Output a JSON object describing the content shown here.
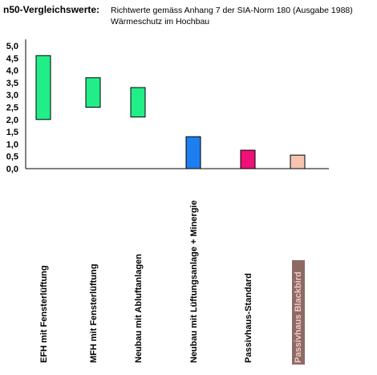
{
  "heading": {
    "label": "n50-Vergleichswerte:",
    "note_line1": "Richtwerte gemäss Anhang 7 der SIA-Norm 180 (Ausgabe 1988)",
    "note_line2": "Wärmeschutz im Hochbau"
  },
  "chart_data": {
    "type": "bar",
    "title": "",
    "xlabel": "",
    "ylabel": "",
    "ylim": [
      0,
      5
    ],
    "y_ticks": [
      "0,0",
      "0,5",
      "1,0",
      "1,5",
      "2,0",
      "2,5",
      "3,0",
      "3,5",
      "4,0",
      "4,5",
      "5,0"
    ],
    "grid": false,
    "categories": [
      "EFH mit Fensterlüftung",
      "MFH mit Fensterlüftung",
      "Neubau mit Abluftanlagen",
      "Neubau mit Lüftungsanlage + Minergie",
      "Passivhaus-Standard",
      "Passivhaus Blackbird"
    ],
    "ranges": [
      {
        "low": 2.0,
        "high": 4.6,
        "color": "#22ee88"
      },
      {
        "low": 2.5,
        "high": 3.7,
        "color": "#22ee88"
      },
      {
        "low": 2.1,
        "high": 3.3,
        "color": "#22ee88"
      },
      {
        "low": 0.0,
        "high": 1.3,
        "color": "#1e7eee"
      },
      {
        "low": 0.0,
        "high": 0.75,
        "color": "#ee1177"
      },
      {
        "low": 0.0,
        "high": 0.55,
        "color": "#f7c4b0"
      }
    ],
    "highlighted_category": "Passivhaus Blackbird",
    "highlight_color": "#8c6b65"
  }
}
